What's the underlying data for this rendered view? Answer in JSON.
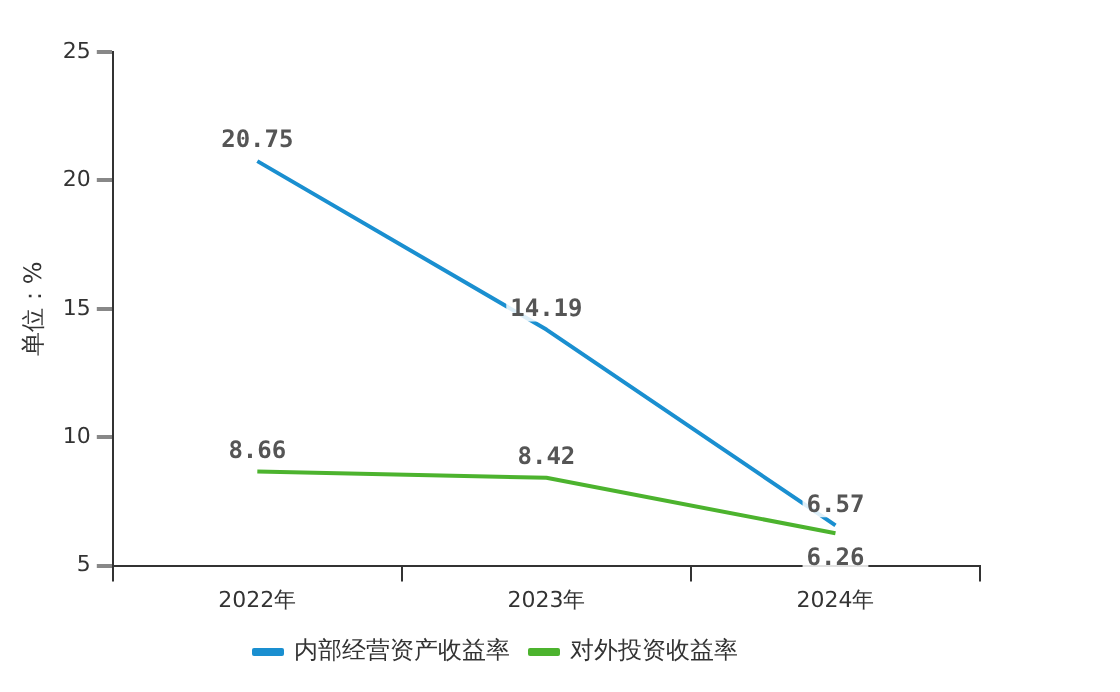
{
  "chart_data": {
    "type": "line",
    "ylabel": "单位：%",
    "categories": [
      "2022年",
      "2023年",
      "2024年"
    ],
    "series": [
      {
        "name": "内部经营资产收益率",
        "color": "#1a8fd0",
        "values": [
          20.75,
          14.19,
          6.57
        ]
      },
      {
        "name": "对外投资收益率",
        "color": "#4cb32e",
        "values": [
          8.66,
          8.42,
          6.26
        ]
      }
    ],
    "ylim": [
      5,
      25
    ],
    "yticks": [
      5,
      10,
      15,
      20,
      25
    ],
    "grid": false,
    "legend": "bottom",
    "marker": "none",
    "line_style": "solid",
    "data_labels": true
  }
}
